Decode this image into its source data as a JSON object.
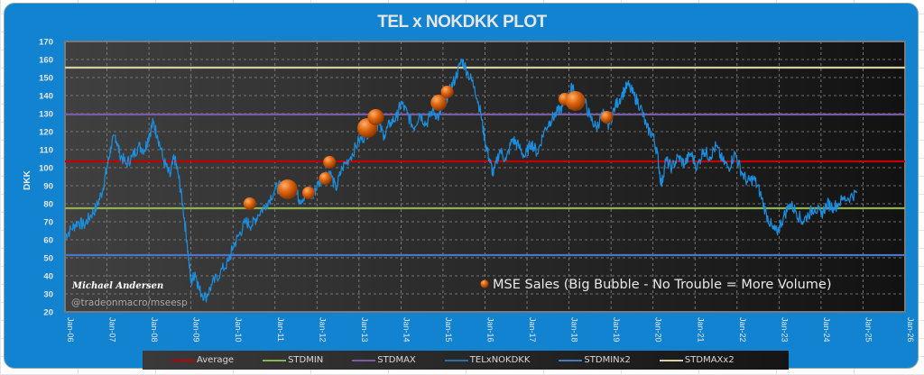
{
  "chart_data": {
    "type": "line",
    "title": "TEL x NOKDKK PLOT",
    "xlabel": "",
    "ylabel": "DKK",
    "ylim": [
      20,
      170
    ],
    "yticks": [
      20,
      30,
      40,
      50,
      60,
      70,
      80,
      90,
      100,
      110,
      120,
      130,
      140,
      150,
      160,
      170
    ],
    "xlim": [
      2006,
      2026
    ],
    "xticks": [
      "Jan-06",
      "Jan-07",
      "Jan-08",
      "Jan-09",
      "Jan-10",
      "Jan-11",
      "Jan-12",
      "Jan-13",
      "Jan-14",
      "Jan-15",
      "Jan-16",
      "Jan-17",
      "Jan-18",
      "Jan-19",
      "Jan-20",
      "Jan-21",
      "Jan-22",
      "Jan-23",
      "Jan-24",
      "Jan-25",
      "Jan-26"
    ],
    "grid": true,
    "legend_position": "bottom",
    "reference_lines": [
      {
        "name": "Average",
        "value": 103.5,
        "color": "#c00000"
      },
      {
        "name": "STDMIN",
        "value": 77.5,
        "color": "#8db050"
      },
      {
        "name": "STDMAX",
        "value": 129.5,
        "color": "#7a5aa0"
      },
      {
        "name": "STDMINx2",
        "value": 51.5,
        "color": "#4a74c4"
      },
      {
        "name": "STDMAXx2",
        "value": 155.5,
        "color": "#d6cfa0"
      }
    ],
    "series": [
      {
        "name": "TELxNOKDKK",
        "color": "#1a8fe0",
        "points": [
          [
            2006.0,
            62
          ],
          [
            2006.15,
            66
          ],
          [
            2006.3,
            70
          ],
          [
            2006.45,
            68
          ],
          [
            2006.6,
            73
          ],
          [
            2006.75,
            78
          ],
          [
            2006.9,
            88
          ],
          [
            2007.0,
            100
          ],
          [
            2007.1,
            112
          ],
          [
            2007.2,
            118
          ],
          [
            2007.3,
            108
          ],
          [
            2007.45,
            102
          ],
          [
            2007.6,
            106
          ],
          [
            2007.75,
            112
          ],
          [
            2007.9,
            110
          ],
          [
            2008.0,
            118
          ],
          [
            2008.1,
            125
          ],
          [
            2008.2,
            118
          ],
          [
            2008.35,
            104
          ],
          [
            2008.5,
            95
          ],
          [
            2008.6,
            106
          ],
          [
            2008.7,
            96
          ],
          [
            2008.8,
            80
          ],
          [
            2008.9,
            60
          ],
          [
            2009.0,
            36
          ],
          [
            2009.1,
            42
          ],
          [
            2009.2,
            32
          ],
          [
            2009.35,
            28
          ],
          [
            2009.5,
            35
          ],
          [
            2009.7,
            42
          ],
          [
            2009.9,
            48
          ],
          [
            2010.0,
            56
          ],
          [
            2010.15,
            63
          ],
          [
            2010.3,
            70
          ],
          [
            2010.45,
            68
          ],
          [
            2010.6,
            74
          ],
          [
            2010.8,
            80
          ],
          [
            2011.0,
            88
          ],
          [
            2011.15,
            90
          ],
          [
            2011.3,
            85
          ],
          [
            2011.45,
            88
          ],
          [
            2011.6,
            82
          ],
          [
            2011.75,
            86
          ],
          [
            2011.9,
            84
          ],
          [
            2012.0,
            90
          ],
          [
            2012.15,
            95
          ],
          [
            2012.3,
            98
          ],
          [
            2012.45,
            88
          ],
          [
            2012.6,
            100
          ],
          [
            2012.8,
            106
          ],
          [
            2013.0,
            115
          ],
          [
            2013.15,
            118
          ],
          [
            2013.3,
            122
          ],
          [
            2013.45,
            124
          ],
          [
            2013.6,
            118
          ],
          [
            2013.75,
            125
          ],
          [
            2013.9,
            128
          ],
          [
            2014.0,
            136
          ],
          [
            2014.15,
            130
          ],
          [
            2014.3,
            122
          ],
          [
            2014.45,
            130
          ],
          [
            2014.6,
            124
          ],
          [
            2014.75,
            132
          ],
          [
            2014.9,
            128
          ],
          [
            2015.0,
            135
          ],
          [
            2015.15,
            142
          ],
          [
            2015.3,
            150
          ],
          [
            2015.45,
            160
          ],
          [
            2015.6,
            152
          ],
          [
            2015.75,
            145
          ],
          [
            2015.9,
            130
          ],
          [
            2016.0,
            115
          ],
          [
            2016.1,
            105
          ],
          [
            2016.2,
            96
          ],
          [
            2016.35,
            110
          ],
          [
            2016.5,
            104
          ],
          [
            2016.65,
            116
          ],
          [
            2016.8,
            112
          ],
          [
            2016.95,
            106
          ],
          [
            2017.1,
            114
          ],
          [
            2017.25,
            108
          ],
          [
            2017.4,
            120
          ],
          [
            2017.55,
            126
          ],
          [
            2017.7,
            130
          ],
          [
            2017.85,
            134
          ],
          [
            2018.0,
            140
          ],
          [
            2018.1,
            146
          ],
          [
            2018.2,
            134
          ],
          [
            2018.35,
            138
          ],
          [
            2018.5,
            128
          ],
          [
            2018.65,
            122
          ],
          [
            2018.8,
            130
          ],
          [
            2018.95,
            124
          ],
          [
            2019.1,
            134
          ],
          [
            2019.25,
            140
          ],
          [
            2019.4,
            146
          ],
          [
            2019.55,
            140
          ],
          [
            2019.7,
            134
          ],
          [
            2019.85,
            122
          ],
          [
            2020.0,
            118
          ],
          [
            2020.1,
            108
          ],
          [
            2020.2,
            90
          ],
          [
            2020.3,
            104
          ],
          [
            2020.45,
            100
          ],
          [
            2020.6,
            106
          ],
          [
            2020.75,
            102
          ],
          [
            2020.9,
            108
          ],
          [
            2021.05,
            100
          ],
          [
            2021.2,
            110
          ],
          [
            2021.35,
            106
          ],
          [
            2021.5,
            112
          ],
          [
            2021.65,
            104
          ],
          [
            2021.8,
            100
          ],
          [
            2021.95,
            108
          ],
          [
            2022.1,
            98
          ],
          [
            2022.25,
            92
          ],
          [
            2022.4,
            94
          ],
          [
            2022.55,
            86
          ],
          [
            2022.7,
            74
          ],
          [
            2022.85,
            66
          ],
          [
            2022.95,
            64
          ],
          [
            2023.1,
            72
          ],
          [
            2023.25,
            80
          ],
          [
            2023.4,
            76
          ],
          [
            2023.55,
            70
          ],
          [
            2023.7,
            74
          ],
          [
            2023.85,
            78
          ],
          [
            2024.0,
            74
          ],
          [
            2024.15,
            80
          ],
          [
            2024.3,
            78
          ],
          [
            2024.5,
            82
          ],
          [
            2024.7,
            84
          ],
          [
            2024.85,
            86
          ]
        ]
      }
    ],
    "bubbles": {
      "name": "MSE Sales",
      "color": "#e06c10",
      "points": [
        {
          "x": 2010.4,
          "y": 80,
          "size": 2
        },
        {
          "x": 2011.3,
          "y": 88,
          "size": 4
        },
        {
          "x": 2011.8,
          "y": 86,
          "size": 2
        },
        {
          "x": 2012.2,
          "y": 94,
          "size": 2
        },
        {
          "x": 2012.3,
          "y": 103,
          "size": 2
        },
        {
          "x": 2013.2,
          "y": 122,
          "size": 4
        },
        {
          "x": 2013.4,
          "y": 128,
          "size": 3
        },
        {
          "x": 2014.9,
          "y": 136,
          "size": 3
        },
        {
          "x": 2015.1,
          "y": 142,
          "size": 2
        },
        {
          "x": 2017.9,
          "y": 138,
          "size": 2
        },
        {
          "x": 2018.15,
          "y": 137,
          "size": 4
        },
        {
          "x": 2018.9,
          "y": 128,
          "size": 2
        }
      ]
    },
    "annotations": {
      "author": "Michael Andersen",
      "handle": "@tradeonmacro/mseesp",
      "bubble_note": "MSE Sales (Big Bubble - No Trouble = More Volume)"
    },
    "legend": [
      "Average",
      "STDMIN",
      "STDMAX",
      "TELxNOKDKK",
      "STDMINx2",
      "STDMAXx2"
    ]
  }
}
